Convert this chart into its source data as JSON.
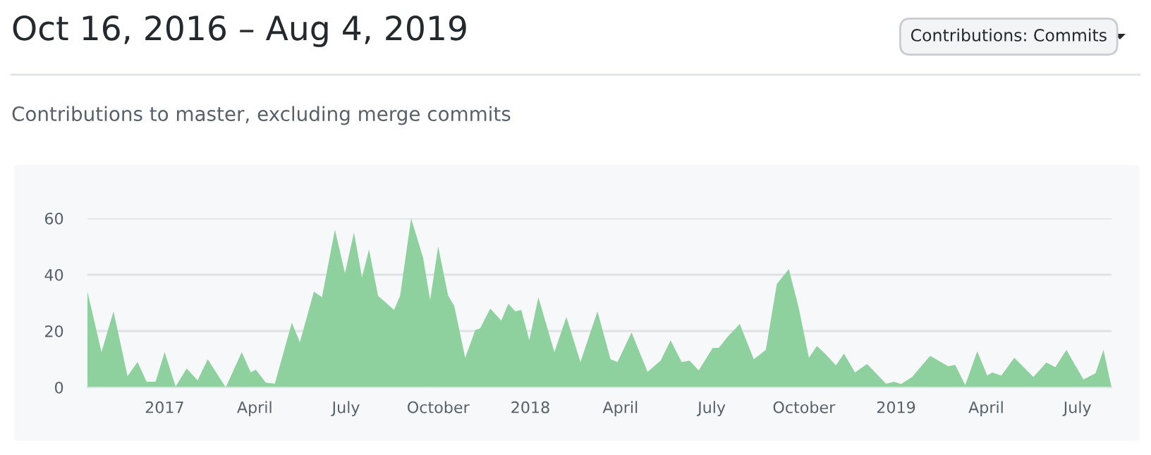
{
  "chart_data": {
    "type": "area",
    "title": "Oct 16, 2016 – Aug 4, 2019",
    "subtitle": "Contributions to master, excluding merge commits",
    "annotations": [
      "Contributions: Commits"
    ],
    "x": [
      "2016-10-16",
      "2016-10-30",
      "2016-11-11",
      "2016-11-25",
      "2016-12-05",
      "2016-12-14",
      "2016-12-23",
      "2017-01-01",
      "2017-01-12",
      "2017-01-23",
      "2017-02-03",
      "2017-02-13",
      "2017-03-03",
      "2017-03-19",
      "2017-03-28",
      "2017-04-02",
      "2017-04-12",
      "2017-04-21",
      "2017-05-08",
      "2017-05-16",
      "2017-05-30",
      "2017-06-07",
      "2017-06-20",
      "2017-06-30",
      "2017-07-09",
      "2017-07-17",
      "2017-07-24",
      "2017-08-02",
      "2017-08-18",
      "2017-08-24",
      "2017-09-04",
      "2017-09-16",
      "2017-09-23",
      "2017-10-01",
      "2017-10-11",
      "2017-10-17",
      "2017-10-28",
      "2017-11-07",
      "2017-11-12",
      "2017-11-22",
      "2017-12-03",
      "2017-12-10",
      "2017-12-17",
      "2017-12-23",
      "2017-12-31",
      "2018-01-09",
      "2018-01-25",
      "2018-02-06",
      "2018-02-20",
      "2018-03-09",
      "2018-03-22",
      "2018-03-29",
      "2018-04-12",
      "2018-04-28",
      "2018-05-11",
      "2018-05-21",
      "2018-06-01",
      "2018-06-09",
      "2018-06-18",
      "2018-07-02",
      "2018-07-08",
      "2018-07-17",
      "2018-07-29",
      "2018-08-12",
      "2018-08-24",
      "2018-09-04",
      "2018-09-16",
      "2018-09-26",
      "2018-10-06",
      "2018-10-14",
      "2018-10-23",
      "2018-11-02",
      "2018-11-10",
      "2018-11-21",
      "2018-12-03",
      "2018-12-22",
      "2018-12-30",
      "2019-01-06",
      "2019-01-17",
      "2019-02-04",
      "2019-02-22",
      "2019-03-01",
      "2019-03-11",
      "2019-03-23",
      "2019-04-02",
      "2019-04-07",
      "2019-04-16",
      "2019-04-29",
      "2019-05-18",
      "2019-05-31",
      "2019-06-09",
      "2019-06-20",
      "2019-07-07",
      "2019-07-19",
      "2019-07-27",
      "2019-08-04"
    ],
    "series": [
      {
        "color": "#8fd19e",
        "values": [
          34,
          12.5,
          27,
          4,
          9,
          2,
          2,
          12.5,
          0.3,
          6.7,
          2.5,
          10,
          0,
          12.5,
          5.3,
          6.3,
          1.7,
          1.3,
          23,
          16,
          34,
          32,
          56,
          40.5,
          55,
          39,
          49,
          32.5,
          27.5,
          32.5,
          60,
          46,
          31,
          50,
          32.5,
          29,
          10.5,
          20.3,
          21,
          28,
          23.7,
          29.7,
          27,
          27.5,
          16.7,
          32,
          12.5,
          25,
          9,
          27,
          10,
          9,
          19.5,
          5.5,
          9.5,
          16.7,
          9,
          9.5,
          6,
          14,
          14,
          18,
          22.5,
          10,
          13.3,
          36.7,
          42,
          28,
          10.5,
          14.7,
          11.7,
          7.8,
          12,
          5.3,
          8.3,
          1.3,
          2,
          1.2,
          3.7,
          11.2,
          7.5,
          8,
          0.8,
          12.8,
          4.2,
          5.3,
          4.2,
          10.5,
          3.7,
          8.8,
          7.2,
          13.3,
          2.8,
          5,
          13.3,
          0
        ]
      }
    ],
    "xlim": [
      "2016-10-16",
      "2019-08-04"
    ],
    "xticks": [
      {
        "value": "2017-01-01",
        "label": "2017"
      },
      {
        "value": "2017-04-01",
        "label": "April"
      },
      {
        "value": "2017-07-01",
        "label": "July"
      },
      {
        "value": "2017-10-01",
        "label": "October"
      },
      {
        "value": "2018-01-01",
        "label": "2018"
      },
      {
        "value": "2018-04-01",
        "label": "April"
      },
      {
        "value": "2018-07-01",
        "label": "July"
      },
      {
        "value": "2018-10-01",
        "label": "October"
      },
      {
        "value": "2019-01-01",
        "label": "2019"
      },
      {
        "value": "2019-04-01",
        "label": "April"
      },
      {
        "value": "2019-07-01",
        "label": "July"
      }
    ],
    "ylim": [
      0,
      60
    ],
    "yticks": [
      0,
      20,
      40,
      60
    ],
    "grid": "y"
  }
}
